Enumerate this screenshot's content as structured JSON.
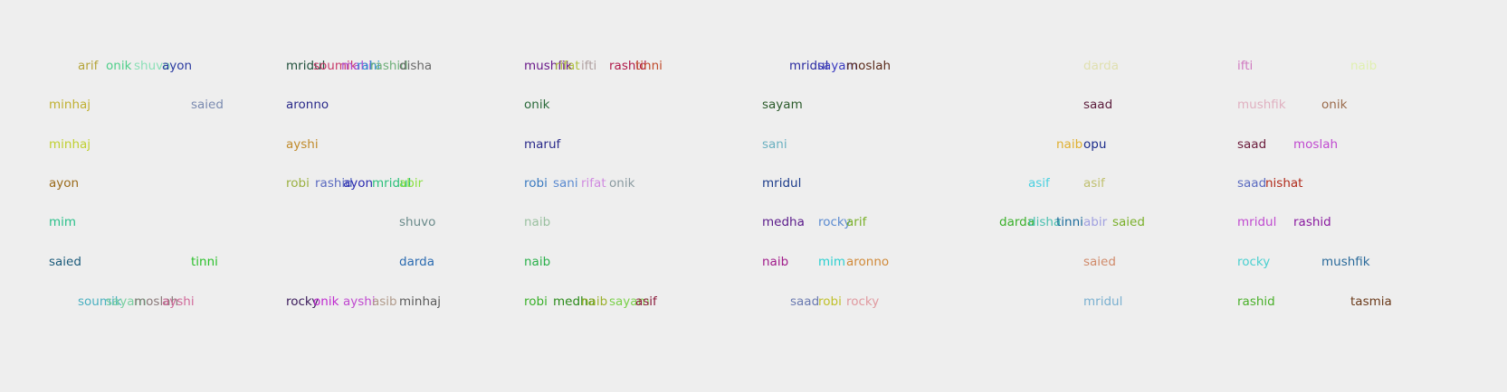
{
  "rows": [
    {
      "name": "row-1",
      "words": [
        {
          "text": "arif",
          "color": "#b5a43a"
        },
        {
          "text": "onik",
          "color": "#4fcf8a"
        },
        {
          "text": "shuvo",
          "color": "#8de0b8"
        },
        {
          "text": "ayon",
          "color": "#2a3aa0"
        },
        {
          "text": "mridul",
          "color": "#1f4f3a"
        },
        {
          "text": "soumik",
          "color": "#c83a6a"
        },
        {
          "text": "mahi",
          "color": "#b04ad0"
        },
        {
          "text": "rahi",
          "color": "#2f8fd0"
        },
        {
          "text": "rashid",
          "color": "#6fb07a"
        },
        {
          "text": "disha",
          "color": "#6a6a6a"
        },
        {
          "text": "mushfik",
          "color": "#6a1a8a"
        },
        {
          "text": "rifat",
          "color": "#b0c040"
        },
        {
          "text": "ifti",
          "color": "#b0a0a0"
        },
        {
          "text": "rashid",
          "color": "#b01a4a"
        },
        {
          "text": "tinni",
          "color": "#c04a2a"
        },
        {
          "text": "mridul",
          "color": "#2a2aa0"
        },
        {
          "text": "sayam",
          "color": "#3a3ac0"
        },
        {
          "text": "moslah",
          "color": "#5a2a1a"
        },
        {
          "text": "darda",
          "color": "#e0e0b0"
        },
        {
          "text": "ifti",
          "color": "#d07ac0"
        },
        {
          "text": "naib",
          "color": "#e0f0b0"
        }
      ]
    },
    {
      "name": "row-2",
      "words": [
        {
          "text": "minhaj",
          "color": "#c0b030"
        },
        {
          "text": "saied",
          "color": "#7a8ab0"
        },
        {
          "text": "aronno",
          "color": "#2a2a8a"
        },
        {
          "text": "onik",
          "color": "#2a6a3a"
        },
        {
          "text": "sayam",
          "color": "#2a5a2a"
        },
        {
          "text": "saad",
          "color": "#5a1a3a"
        },
        {
          "text": "mushfik",
          "color": "#e0b0c0"
        },
        {
          "text": "onik",
          "color": "#9a6a4a"
        }
      ]
    },
    {
      "name": "row-3",
      "words": [
        {
          "text": "minhaj",
          "color": "#c0d030"
        },
        {
          "text": "ayshi",
          "color": "#c08a2a"
        },
        {
          "text": "maruf",
          "color": "#2a2a8a"
        },
        {
          "text": "sani",
          "color": "#6ab0c0"
        },
        {
          "text": "naib",
          "color": "#e0b030"
        },
        {
          "text": "opu",
          "color": "#1a2a8a"
        },
        {
          "text": "saad",
          "color": "#6a1a3a"
        },
        {
          "text": "moslah",
          "color": "#c04ad0"
        }
      ]
    },
    {
      "name": "row-4",
      "words": [
        {
          "text": "ayon",
          "color": "#9a6a1a"
        },
        {
          "text": "robi",
          "color": "#9ab040"
        },
        {
          "text": "rashid",
          "color": "#5a6ac0"
        },
        {
          "text": "ayon",
          "color": "#2a2ab0"
        },
        {
          "text": "mridul",
          "color": "#2ac07a"
        },
        {
          "text": "abir",
          "color": "#8ae040"
        },
        {
          "text": "robi",
          "color": "#3a7ac0"
        },
        {
          "text": "sani",
          "color": "#5a8ad0"
        },
        {
          "text": "rifat",
          "color": "#d08ae0"
        },
        {
          "text": "onik",
          "color": "#8a9aa0"
        },
        {
          "text": "mridul",
          "color": "#1a3a8a"
        },
        {
          "text": "asif",
          "color": "#4ad0e0"
        },
        {
          "text": "asif",
          "color": "#c0c070"
        },
        {
          "text": "saad",
          "color": "#5a6ac0"
        },
        {
          "text": "nishat",
          "color": "#b02a1a"
        }
      ]
    },
    {
      "name": "row-5",
      "words": [
        {
          "text": "mim",
          "color": "#2ac08a"
        },
        {
          "text": "shuvo",
          "color": "#6a8a8a"
        },
        {
          "text": "naib",
          "color": "#9ac0a0"
        },
        {
          "text": "medha",
          "color": "#5a1a8a"
        },
        {
          "text": "rocky",
          "color": "#5a8ad0"
        },
        {
          "text": "arif",
          "color": "#7ab02a"
        },
        {
          "text": "darda",
          "color": "#3ab02a"
        },
        {
          "text": "disha",
          "color": "#4ac0b0"
        },
        {
          "text": "tinni",
          "color": "#1a6a9a"
        },
        {
          "text": "abir",
          "color": "#a0a0e0"
        },
        {
          "text": "saied",
          "color": "#7ab02a"
        },
        {
          "text": "mridul",
          "color": "#c04ad0"
        },
        {
          "text": "rashid",
          "color": "#8a1aa0"
        }
      ]
    },
    {
      "name": "row-6",
      "words": [
        {
          "text": "saied",
          "color": "#1a5a7a"
        },
        {
          "text": "tinni",
          "color": "#2ac02a"
        },
        {
          "text": "darda",
          "color": "#2a6ab0"
        },
        {
          "text": "naib",
          "color": "#2ab04a"
        },
        {
          "text": "naib",
          "color": "#a01a8a"
        },
        {
          "text": "mim",
          "color": "#2ad0d0"
        },
        {
          "text": "aronno",
          "color": "#d08a3a"
        },
        {
          "text": "saied",
          "color": "#d08a6a"
        },
        {
          "text": "rocky",
          "color": "#4ad0d0"
        },
        {
          "text": "mushfik",
          "color": "#2a6a9a"
        }
      ]
    },
    {
      "name": "row-7",
      "words": [
        {
          "text": "soumik",
          "color": "#4ab0c0"
        },
        {
          "text": "sayam",
          "color": "#7ad0a0"
        },
        {
          "text": "moslah",
          "color": "#8a7a7a"
        },
        {
          "text": "ayshi",
          "color": "#d06a9a"
        },
        {
          "text": "rocky",
          "color": "#3a1a5a"
        },
        {
          "text": "onik",
          "color": "#c02ad0"
        },
        {
          "text": "ayshi",
          "color": "#c04ad0"
        },
        {
          "text": "asib",
          "color": "#b09a8a"
        },
        {
          "text": "minhaj",
          "color": "#5a5a5a"
        },
        {
          "text": "robi",
          "color": "#3ab02a"
        },
        {
          "text": "medha",
          "color": "#2a8a1a"
        },
        {
          "text": "naib",
          "color": "#9ab02a"
        },
        {
          "text": "sayam",
          "color": "#7ad04a"
        },
        {
          "text": "asif",
          "color": "#8a1a3a"
        },
        {
          "text": "saad",
          "color": "#6a7ab0"
        },
        {
          "text": "robi",
          "color": "#c0c02a"
        },
        {
          "text": "rocky",
          "color": "#e09aa0"
        },
        {
          "text": "mridul",
          "color": "#7ab0d0"
        },
        {
          "text": "rashid",
          "color": "#4ab02a"
        },
        {
          "text": "tasmia",
          "color": "#6a3a1a"
        }
      ]
    }
  ]
}
